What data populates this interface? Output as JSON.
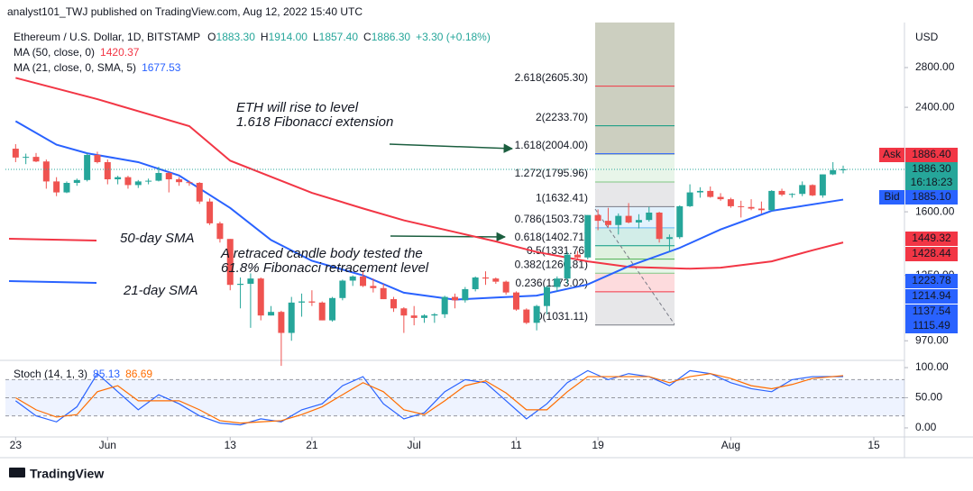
{
  "header": {
    "publisher": "analyst101_TWJ published on TradingView.com, Aug 12, 2022 15:40 UTC",
    "symbol": "Ethereum / U.S. Dollar, 1D, BITSTAMP",
    "ohlc": [
      {
        "key": "O",
        "label": "1883.30"
      },
      {
        "key": "H",
        "label": "1914.00"
      },
      {
        "key": "L",
        "label": "1857.40"
      },
      {
        "key": "C",
        "label": "1886.30"
      }
    ],
    "change": "+3.30 (+0.18%)",
    "currency": "USD",
    "brand": "TradingView"
  },
  "chart_data": {
    "type": "candlestick",
    "log_scale": true,
    "grid": false,
    "up_color": "#26a69a",
    "down_color": "#ef5350",
    "x": [
      0,
      1,
      2,
      3,
      4,
      5,
      6,
      7,
      8,
      9,
      10,
      11,
      12,
      13,
      14,
      15,
      16,
      17,
      18,
      19,
      20,
      21,
      22,
      23,
      24,
      25,
      26,
      27,
      28,
      29,
      30,
      31,
      32,
      33,
      34,
      35,
      36,
      37,
      38,
      39,
      40,
      41,
      42,
      43,
      44,
      45,
      46,
      47,
      48,
      49,
      50,
      51,
      52,
      53,
      54,
      55,
      56,
      57,
      58,
      59,
      60,
      61,
      62,
      63,
      64,
      65,
      66,
      67,
      68,
      69,
      70,
      71,
      72,
      73,
      74,
      75,
      76,
      77,
      78,
      79,
      80,
      81
    ],
    "open": [
      2044,
      1975,
      1980,
      1945,
      1800,
      1725,
      1790,
      1810,
      1995,
      1940,
      1815,
      1830,
      1775,
      1800,
      1805,
      1860,
      1815,
      1795,
      1790,
      1665,
      1530,
      1440,
      1205,
      1210,
      1235,
      1070,
      1085,
      1000,
      1125,
      1130,
      1125,
      1050,
      1145,
      1225,
      1245,
      1200,
      1190,
      1140,
      1100,
      1070,
      1060,
      1070,
      1075,
      1150,
      1135,
      1185,
      1240,
      1235,
      1220,
      1170,
      1095,
      1040,
      1110,
      1195,
      1235,
      1355,
      1340,
      1580,
      1545,
      1520,
      1575,
      1535,
      1550,
      1595,
      1440,
      1450,
      1635,
      1725,
      1735,
      1695,
      1680,
      1635,
      1630,
      1620,
      1610,
      1735,
      1710,
      1715,
      1775,
      1705,
      1850,
      1883.3
    ],
    "high": [
      2080,
      2005,
      2010,
      1960,
      1830,
      1800,
      1820,
      2010,
      2020,
      1960,
      1840,
      1840,
      1810,
      1820,
      1905,
      1865,
      1830,
      1805,
      1795,
      1685,
      1540,
      1440,
      1240,
      1260,
      1240,
      1110,
      1090,
      1150,
      1165,
      1180,
      1130,
      1150,
      1230,
      1250,
      1275,
      1235,
      1210,
      1150,
      1105,
      1110,
      1075,
      1080,
      1155,
      1165,
      1195,
      1245,
      1270,
      1240,
      1225,
      1175,
      1100,
      1115,
      1200,
      1245,
      1370,
      1375,
      1580,
      1615,
      1625,
      1590,
      1655,
      1585,
      1630,
      1600,
      1465,
      1640,
      1780,
      1760,
      1765,
      1720,
      1690,
      1670,
      1680,
      1665,
      1740,
      1750,
      1720,
      1800,
      1780,
      1850,
      1940,
      1914
    ],
    "low": [
      1940,
      1925,
      1940,
      1750,
      1700,
      1720,
      1770,
      1800,
      1930,
      1780,
      1780,
      1750,
      1755,
      1780,
      1800,
      1725,
      1770,
      1770,
      1650,
      1520,
      1420,
      1180,
      1100,
      1020,
      1050,
      1070,
      880,
      970,
      1065,
      1110,
      1050,
      1045,
      1135,
      1200,
      1195,
      1170,
      1140,
      1085,
      1000,
      1030,
      1040,
      1040,
      1060,
      1100,
      1125,
      1175,
      1205,
      1210,
      1160,
      1090,
      1035,
      1010,
      1075,
      1175,
      1210,
      1335,
      1330,
      1490,
      1505,
      1465,
      1530,
      1500,
      1540,
      1420,
      1370,
      1440,
      1630,
      1690,
      1690,
      1670,
      1625,
      1565,
      1610,
      1590,
      1605,
      1700,
      1690,
      1700,
      1700,
      1690,
      1845,
      1857.4
    ],
    "close": [
      1975,
      1980,
      1945,
      1800,
      1725,
      1790,
      1810,
      1995,
      1940,
      1815,
      1830,
      1775,
      1800,
      1805,
      1860,
      1815,
      1795,
      1790,
      1665,
      1530,
      1440,
      1205,
      1210,
      1235,
      1070,
      1085,
      1000,
      1125,
      1130,
      1125,
      1050,
      1145,
      1225,
      1245,
      1200,
      1190,
      1140,
      1100,
      1070,
      1060,
      1070,
      1075,
      1150,
      1135,
      1185,
      1240,
      1235,
      1220,
      1170,
      1095,
      1040,
      1110,
      1195,
      1235,
      1355,
      1340,
      1580,
      1545,
      1520,
      1575,
      1535,
      1550,
      1595,
      1440,
      1450,
      1635,
      1725,
      1735,
      1695,
      1680,
      1635,
      1630,
      1620,
      1610,
      1735,
      1710,
      1715,
      1775,
      1705,
      1850,
      1880,
      1886.3
    ],
    "xlim": [
      -1,
      87
    ],
    "xticks": [
      {
        "value": 0,
        "label": "23"
      },
      {
        "value": 9,
        "label": "Jun"
      },
      {
        "value": 21,
        "label": "13"
      },
      {
        "value": 29,
        "label": "21"
      },
      {
        "value": 39,
        "label": "Jul"
      },
      {
        "value": 49,
        "label": "11"
      },
      {
        "value": 57,
        "label": "19"
      },
      {
        "value": 70,
        "label": "Aug"
      },
      {
        "value": 84,
        "label": "15"
      }
    ],
    "ylim": [
      899,
      3277
    ],
    "yticks": [
      {
        "value": 2800,
        "label": "2800.00"
      },
      {
        "value": 2400,
        "label": "2400.00"
      },
      {
        "value": 1600,
        "label": "1600.00"
      },
      {
        "value": 1250,
        "label": "1250.00"
      },
      {
        "value": 970,
        "label": "970.00"
      }
    ],
    "overlays": [
      {
        "name": "MA (50, close, 0)",
        "color": "#f23645",
        "x": [
          0,
          8,
          17,
          21,
          29,
          34,
          38,
          43,
          47,
          51,
          56,
          60,
          66,
          69,
          74,
          78,
          81
        ],
        "values": [
          2690,
          2477,
          2231,
          1951,
          1722,
          1621,
          1548,
          1479,
          1426,
          1369,
          1320,
          1292,
          1283,
          1288,
          1320,
          1378,
          1420.37
        ]
      },
      {
        "name": "MA (21, close, 0, SMA, 5)",
        "color": "#2962ff",
        "x": [
          0,
          4,
          7,
          12,
          16,
          21,
          25,
          29,
          34,
          38,
          43,
          47,
          51,
          56,
          60,
          65,
          69,
          74,
          81
        ],
        "values": [
          2274,
          2076,
          2008,
          1940,
          1842,
          1624,
          1434,
          1323,
          1250,
          1169,
          1138,
          1147,
          1156,
          1207,
          1295,
          1391,
          1494,
          1606,
          1677.53
        ]
      }
    ],
    "fibonacci": [
      {
        "label": "2.618(2605.30)",
        "value": 2605.3,
        "color": "#f23645"
      },
      {
        "label": "2(2233.70)",
        "value": 2233.7,
        "color": "#089981"
      },
      {
        "label": "1.618(2004.00)",
        "value": 2004,
        "color": "#2962ff"
      },
      {
        "label": "1.272(1795.96)",
        "value": 1795.96,
        "color": "#81c784"
      },
      {
        "label": "1(1632.41)",
        "value": 1632.41,
        "color": "#787b86"
      },
      {
        "label": "0.786(1503.73)",
        "value": 1503.73,
        "color": "#64b5f6"
      },
      {
        "label": "0.618(1402.71)",
        "value": 1402.71,
        "color": "#089981"
      },
      {
        "label": "0.5(1331.76)",
        "value": 1331.76,
        "color": "#4caf50"
      },
      {
        "label": "0.382(1260.81)",
        "value": 1260.81,
        "color": "#81c784"
      },
      {
        "label": "0.236(1173.02)",
        "value": 1173.02,
        "color": "#f23645"
      },
      {
        "label": "0(1031.11)",
        "value": 1031.11,
        "color": "#787b86"
      }
    ],
    "annotations": [
      {
        "text": "ETH will rise to level",
        "color": "#131722"
      },
      {
        "text": "1.618 Fibonacci extension",
        "color": "#131722"
      },
      {
        "text": "A retraced candle body tested the",
        "color": "#131722"
      },
      {
        "text": "61.8% Fibonacci retracement level",
        "color": "#131722"
      },
      {
        "text": "50-day SMA",
        "color": "#f23645"
      },
      {
        "text": "21-day SMA",
        "color": "#2962ff"
      }
    ],
    "price_labels": [
      {
        "tag": "Ask",
        "value": 1886.4,
        "label": "1886.40",
        "color": "#f23645"
      },
      {
        "value": 1886.3,
        "label": "1886.30",
        "color": "#26a69a"
      },
      {
        "label": "16:18:23",
        "color": "#26a69a"
      },
      {
        "tag": "Bid",
        "value": 1885.1,
        "label": "1885.10",
        "color": "#2962ff"
      },
      {
        "value": 1449.32,
        "label": "1449.32",
        "color": "#f23645"
      },
      {
        "value": 1428.44,
        "label": "1428.44",
        "color": "#f23645"
      },
      {
        "value": 1223.78,
        "label": "1223.78",
        "color": "#2962ff"
      },
      {
        "value": 1214.94,
        "label": "1214.94",
        "color": "#2962ff"
      },
      {
        "value": 1137.54,
        "label": "1137.54",
        "color": "#2962ff"
      },
      {
        "value": 1115.49,
        "label": "1115.49",
        "color": "#2962ff"
      }
    ],
    "indicator": {
      "name": "Stoch (14, 1, 3)",
      "x": [
        0,
        2,
        4,
        6,
        8,
        10,
        12,
        14,
        16,
        18,
        20,
        22,
        24,
        26,
        28,
        30,
        32,
        34,
        36,
        38,
        40,
        42,
        44,
        46,
        48,
        50,
        52,
        54,
        56,
        58,
        60,
        62,
        64,
        66,
        68,
        70,
        72,
        74,
        76,
        78,
        81
      ],
      "ylim": [
        -15,
        112
      ],
      "yticks": [
        {
          "value": 100,
          "label": "100.00"
        },
        {
          "value": 50,
          "label": "50.00"
        },
        {
          "value": 0,
          "label": "0.00"
        }
      ],
      "levels": [
        80,
        50,
        20
      ],
      "series": [
        {
          "color": "#2962ff",
          "values": [
            45,
            20,
            10,
            35,
            90,
            60,
            30,
            55,
            40,
            20,
            8,
            5,
            15,
            10,
            30,
            40,
            70,
            85,
            40,
            15,
            25,
            60,
            80,
            75,
            45,
            15,
            40,
            75,
            95,
            80,
            90,
            85,
            70,
            95,
            90,
            75,
            65,
            60,
            80,
            85,
            85.13
          ]
        },
        {
          "color": "#ff6d00",
          "values": [
            50,
            30,
            18,
            22,
            60,
            70,
            45,
            45,
            45,
            30,
            12,
            8,
            10,
            12,
            22,
            35,
            55,
            75,
            60,
            30,
            22,
            45,
            70,
            78,
            58,
            30,
            30,
            60,
            85,
            85,
            85,
            85,
            75,
            85,
            90,
            82,
            70,
            65,
            72,
            82,
            86.69
          ]
        }
      ]
    }
  }
}
